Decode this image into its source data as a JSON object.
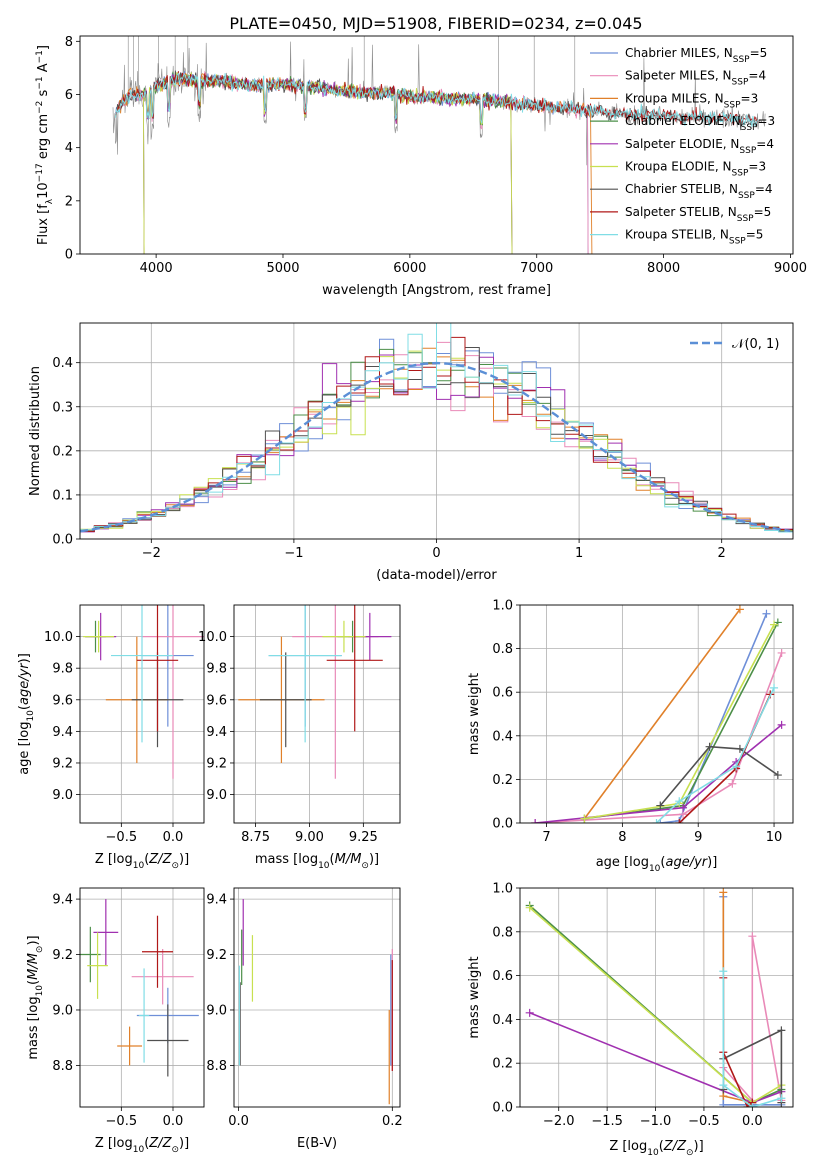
{
  "title": "PLATE=0450, MJD=51908, FIBERID=0234, z=0.045",
  "colors": {
    "Chabrier MILES": "#6e8fd8",
    "Salpeter MILES": "#e98ab8",
    "Kroupa MILES": "#e0802a",
    "Chabrier ELODIE": "#4c8f48",
    "Salpeter ELODIE": "#a030b0",
    "Kroupa ELODIE": "#c8e050",
    "Chabrier STELIB": "#505050",
    "Salpeter STELIB": "#b01818",
    "Kroupa STELIB": "#80dde5",
    "data": "#8a8a8a",
    "normal": "#5b8fd6"
  },
  "chart_data": [
    {
      "id": "spectrum",
      "type": "line",
      "xlabel": "wavelength [Angstrom, rest frame]",
      "ylabel": "Flux [f_λ 10^-17 erg cm^-2 s^-1 A^-1]",
      "xlim": [
        3400,
        9020
      ],
      "ylim": [
        0,
        8.2
      ],
      "xticks": [
        4000,
        5000,
        6000,
        7000,
        8000,
        9000
      ],
      "yticks": [
        0,
        2,
        4,
        6,
        8
      ],
      "legend_position": "top-right",
      "legend": [
        {
          "model": "Chabrier MILES",
          "n": "5"
        },
        {
          "model": "Salpeter MILES",
          "n": "4"
        },
        {
          "model": "Kroupa MILES",
          "n": "3"
        },
        {
          "model": "Chabrier ELODIE",
          "n": "3"
        },
        {
          "model": "Salpeter ELODIE",
          "n": "4"
        },
        {
          "model": "Kroupa ELODIE",
          "n": "3"
        },
        {
          "model": "Chabrier STELIB",
          "n": "4"
        },
        {
          "model": "Salpeter STELIB",
          "n": "5"
        },
        {
          "model": "Kroupa STELIB",
          "n": "5"
        }
      ],
      "continuum": {
        "x": [
          3650,
          3700,
          3800,
          3900,
          4000,
          4100,
          4200,
          4400,
          4600,
          4800,
          5000,
          5200,
          5500,
          5800,
          6000,
          6300,
          6600,
          6800,
          7000,
          7200,
          7400,
          7600,
          7800,
          8000,
          8200,
          8500,
          8800
        ],
        "y": [
          5.0,
          5.5,
          6.0,
          6.0,
          6.3,
          6.5,
          6.6,
          6.55,
          6.45,
          6.35,
          6.4,
          6.3,
          6.1,
          6.05,
          5.95,
          5.85,
          5.8,
          5.7,
          5.6,
          5.5,
          5.4,
          5.3,
          5.25,
          5.2,
          5.15,
          5.1,
          5.0
        ]
      }
    },
    {
      "id": "residuals",
      "type": "histogram",
      "xlabel": "(data-model)/error",
      "ylabel": "Normed distribution",
      "xlim": [
        -2.5,
        2.5
      ],
      "ylim": [
        0,
        0.49
      ],
      "xticks": [
        -2,
        -1,
        0,
        1,
        2
      ],
      "yticks": [
        0.0,
        0.1,
        0.2,
        0.3,
        0.4
      ],
      "bin_width": 0.1,
      "legend": "𝒩(0, 1)",
      "legend_position": "top-right"
    },
    {
      "id": "age-Z",
      "type": "scatter",
      "xlabel": "Z [log10(Z/Z⊙)]",
      "ylabel": "age  [log10(age/yr)]",
      "xlim": [
        -0.9,
        0.3
      ],
      "ylim": [
        8.82,
        10.2
      ],
      "xticks": [
        -0.5,
        0.0
      ],
      "yticks": [
        9.0,
        9.2,
        9.4,
        9.6,
        9.8,
        10.0
      ],
      "points": [
        {
          "model": "Chabrier MILES",
          "x": -0.05,
          "y": 9.88,
          "xerr": 0.25,
          "yerr": 0.45
        },
        {
          "model": "Salpeter MILES",
          "x": 0.0,
          "y": 10.0,
          "xerr": 0.3,
          "yerr": 0.9
        },
        {
          "model": "Kroupa MILES",
          "x": -0.35,
          "y": 9.6,
          "xerr": 0.3,
          "yerr": 0.4
        },
        {
          "model": "Chabrier ELODIE",
          "x": -0.75,
          "y": 10.0,
          "xerr": 0.1,
          "yerr": 0.1
        },
        {
          "model": "Salpeter ELODIE",
          "x": -0.7,
          "y": 10.0,
          "xerr": 0.15,
          "yerr": 0.15
        },
        {
          "model": "Kroupa ELODIE",
          "x": -0.72,
          "y": 10.0,
          "xerr": 0.15,
          "yerr": 0.1
        },
        {
          "model": "Chabrier STELIB",
          "x": -0.15,
          "y": 9.6,
          "xerr": 0.25,
          "yerr": 0.3
        },
        {
          "model": "Salpeter STELIB",
          "x": -0.15,
          "y": 9.85,
          "xerr": 0.2,
          "yerr": 0.45
        },
        {
          "model": "Kroupa STELIB",
          "x": -0.3,
          "y": 9.88,
          "xerr": 0.3,
          "yerr": 0.55
        }
      ]
    },
    {
      "id": "age-mass",
      "type": "scatter",
      "xlabel": "mass [log10(M/M⊙)]",
      "xlim": [
        8.65,
        9.42
      ],
      "ylim": [
        8.82,
        10.2
      ],
      "xticks": [
        8.75,
        9.0,
        9.25
      ],
      "yticks": [
        9.0,
        9.2,
        9.4,
        9.6,
        9.8,
        10.0
      ],
      "points": [
        {
          "model": "Chabrier MILES",
          "x": 8.98,
          "y": 9.88,
          "xerr": 0.17,
          "yerr": 0.45
        },
        {
          "model": "Salpeter MILES",
          "x": 9.12,
          "y": 10.0,
          "xerr": 0.2,
          "yerr": 0.9
        },
        {
          "model": "Kroupa MILES",
          "x": 8.87,
          "y": 9.6,
          "xerr": 0.2,
          "yerr": 0.4
        },
        {
          "model": "Chabrier ELODIE",
          "x": 9.2,
          "y": 10.0,
          "xerr": 0.07,
          "yerr": 0.1
        },
        {
          "model": "Salpeter ELODIE",
          "x": 9.28,
          "y": 10.0,
          "xerr": 0.1,
          "yerr": 0.15
        },
        {
          "model": "Kroupa ELODIE",
          "x": 9.16,
          "y": 10.0,
          "xerr": 0.1,
          "yerr": 0.1
        },
        {
          "model": "Chabrier STELIB",
          "x": 8.89,
          "y": 9.6,
          "xerr": 0.12,
          "yerr": 0.3
        },
        {
          "model": "Salpeter STELIB",
          "x": 9.21,
          "y": 9.85,
          "xerr": 0.13,
          "yerr": 0.45
        },
        {
          "model": "Kroupa STELIB",
          "x": 8.98,
          "y": 9.88,
          "xerr": 0.17,
          "yerr": 0.55
        }
      ]
    },
    {
      "id": "weight-age",
      "type": "line",
      "xlabel": "age  [log10(age/yr)]",
      "ylabel": "mass weight",
      "xlim": [
        6.65,
        10.25
      ],
      "ylim": [
        0,
        1.0
      ],
      "xticks": [
        7,
        8,
        9,
        10
      ],
      "yticks": [
        0.0,
        0.2,
        0.4,
        0.6,
        0.8,
        1.0
      ],
      "series": [
        {
          "model": "Chabrier MILES",
          "x": [
            8.5,
            8.75,
            9.9
          ],
          "y": [
            0.0,
            0.01,
            0.96
          ]
        },
        {
          "model": "Salpeter MILES",
          "x": [
            6.85,
            8.8,
            9.45,
            10.1
          ],
          "y": [
            0.0,
            0.04,
            0.18,
            0.78
          ]
        },
        {
          "model": "Kroupa MILES",
          "x": [
            7.5,
            9.55
          ],
          "y": [
            0.02,
            0.98
          ]
        },
        {
          "model": "Chabrier ELODIE",
          "x": [
            7.5,
            8.8,
            10.05
          ],
          "y": [
            0.02,
            0.08,
            0.92
          ]
        },
        {
          "model": "Salpeter ELODIE",
          "x": [
            6.85,
            8.8,
            9.5,
            10.1
          ],
          "y": [
            0.0,
            0.07,
            0.28,
            0.45
          ]
        },
        {
          "model": "Kroupa ELODIE",
          "x": [
            7.5,
            8.75,
            10.0
          ],
          "y": [
            0.02,
            0.09,
            0.91
          ]
        },
        {
          "model": "Chabrier STELIB",
          "x": [
            8.5,
            9.15,
            9.55,
            10.05
          ],
          "y": [
            0.08,
            0.35,
            0.34,
            0.22
          ]
        },
        {
          "model": "Salpeter STELIB",
          "x": [
            8.75,
            9.5,
            9.95
          ],
          "y": [
            0.0,
            0.25,
            0.59
          ]
        },
        {
          "model": "Kroupa STELIB",
          "x": [
            8.45,
            8.75,
            9.5,
            10.0
          ],
          "y": [
            0.0,
            0.1,
            0.26,
            0.62
          ]
        }
      ]
    },
    {
      "id": "mass-Z",
      "type": "scatter",
      "xlabel": "Z [log10(Z/Z⊙)]",
      "ylabel": "mass [log10(M/M⊙)]",
      "xlim": [
        -0.9,
        0.3
      ],
      "ylim": [
        8.65,
        9.44
      ],
      "xticks": [
        -0.5,
        0.0
      ],
      "yticks": [
        8.8,
        9.0,
        9.2,
        9.4
      ],
      "points": [
        {
          "model": "Chabrier MILES",
          "x": -0.05,
          "y": 8.98,
          "xerr": 0.3,
          "yerr": 0.1
        },
        {
          "model": "Salpeter MILES",
          "x": -0.1,
          "y": 9.12,
          "xerr": 0.3,
          "yerr": 0.1
        },
        {
          "model": "Kroupa MILES",
          "x": -0.42,
          "y": 8.87,
          "xerr": 0.12,
          "yerr": 0.07
        },
        {
          "model": "Chabrier ELODIE",
          "x": -0.8,
          "y": 9.2,
          "xerr": 0.1,
          "yerr": 0.1
        },
        {
          "model": "Salpeter ELODIE",
          "x": -0.65,
          "y": 9.28,
          "xerr": 0.12,
          "yerr": 0.12
        },
        {
          "model": "Kroupa ELODIE",
          "x": -0.73,
          "y": 9.16,
          "xerr": 0.1,
          "yerr": 0.12
        },
        {
          "model": "Chabrier STELIB",
          "x": -0.05,
          "y": 8.89,
          "xerr": 0.2,
          "yerr": 0.13
        },
        {
          "model": "Salpeter STELIB",
          "x": -0.15,
          "y": 9.21,
          "xerr": 0.15,
          "yerr": 0.13
        },
        {
          "model": "Kroupa STELIB",
          "x": -0.28,
          "y": 8.98,
          "xerr": 0.05,
          "yerr": 0.17
        }
      ]
    },
    {
      "id": "mass-EBV",
      "type": "scatter",
      "xlabel": "E(B-V)",
      "xlim": [
        -0.006,
        0.21
      ],
      "ylim": [
        8.65,
        9.44
      ],
      "xticks": [
        0.0,
        0.2
      ],
      "yticks": [
        8.8,
        9.0,
        9.2,
        9.4
      ],
      "points": [
        {
          "model": "Chabrier MILES",
          "x": 0.198,
          "y": 9.0,
          "yerr": 0.2
        },
        {
          "model": "Salpeter MILES",
          "x": 0.2,
          "y": 9.0,
          "yerr": 0.22
        },
        {
          "model": "Kroupa MILES",
          "x": 0.196,
          "y": 8.83,
          "yerr": 0.17
        },
        {
          "model": "Chabrier ELODIE",
          "x": 0.004,
          "y": 9.19,
          "yerr": 0.1
        },
        {
          "model": "Salpeter ELODIE",
          "x": 0.006,
          "y": 9.28,
          "yerr": 0.12
        },
        {
          "model": "Kroupa ELODIE",
          "x": 0.018,
          "y": 9.15,
          "yerr": 0.12
        },
        {
          "model": "Chabrier STELIB",
          "x": 0.002,
          "y": 8.95,
          "yerr": 0.15
        },
        {
          "model": "Salpeter STELIB",
          "x": 0.2,
          "y": 8.98,
          "yerr": 0.2
        },
        {
          "model": "Kroupa STELIB",
          "x": 0.001,
          "y": 8.98,
          "yerr": 0.18
        }
      ]
    },
    {
      "id": "weight-Z",
      "type": "line",
      "xlabel": "Z [log10(Z/Z⊙)]",
      "ylabel": "mass weight",
      "xlim": [
        -2.4,
        0.42
      ],
      "ylim": [
        0,
        1.0
      ],
      "xticks": [
        -2.0,
        -1.5,
        -1.0,
        -0.5,
        0.0
      ],
      "yticks": [
        0.0,
        0.2,
        0.4,
        0.6,
        0.8,
        1.0
      ],
      "series": [
        {
          "model": "Chabrier MILES",
          "x": [
            -0.3,
            -0.3,
            0.3
          ],
          "y": [
            0.96,
            0.01,
            0.01
          ]
        },
        {
          "model": "Salpeter MILES",
          "x": [
            -0.3,
            0.0,
            0.0,
            0.3
          ],
          "y": [
            0.18,
            0.03,
            0.78,
            0.03
          ]
        },
        {
          "model": "Kroupa MILES",
          "x": [
            -0.3,
            -0.3,
            0.0
          ],
          "y": [
            0.98,
            0.05,
            0.02
          ]
        },
        {
          "model": "Chabrier ELODIE",
          "x": [
            -2.3,
            0.0,
            0.3
          ],
          "y": [
            0.92,
            0.02,
            0.08
          ]
        },
        {
          "model": "Salpeter ELODIE",
          "x": [
            -2.3,
            0.0,
            0.3
          ],
          "y": [
            0.43,
            0.02,
            0.07
          ]
        },
        {
          "model": "Kroupa ELODIE",
          "x": [
            -2.3,
            0.0,
            0.3
          ],
          "y": [
            0.91,
            0.02,
            0.1
          ]
        },
        {
          "model": "Chabrier STELIB",
          "x": [
            -0.3,
            -0.3,
            0.3,
            0.3
          ],
          "y": [
            0.08,
            0.22,
            0.35,
            0.02
          ]
        },
        {
          "model": "Salpeter STELIB",
          "x": [
            -0.3,
            -0.3,
            -0.05,
            0.0
          ],
          "y": [
            0.59,
            0.25,
            0.0,
            0.02
          ]
        },
        {
          "model": "Kroupa STELIB",
          "x": [
            -0.3,
            -0.3,
            0.0,
            0.3
          ],
          "y": [
            0.62,
            0.1,
            0.0,
            0.04
          ]
        }
      ]
    }
  ]
}
